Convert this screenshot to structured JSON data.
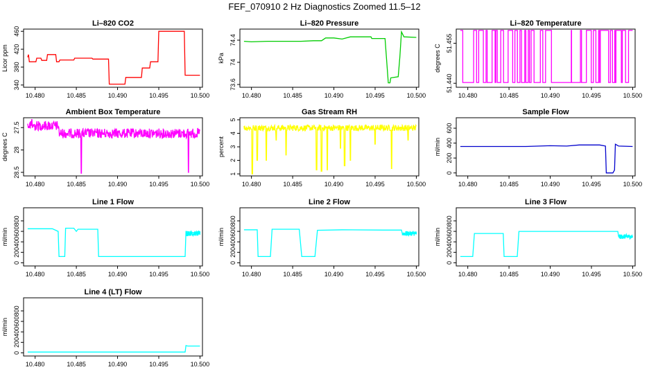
{
  "title": "FEF_070910  2 Hz Diagnostics Zoomed 11.5–12",
  "x_ticks": [
    "10.480",
    "10.485",
    "10.490",
    "10.495",
    "10.500"
  ],
  "chart_data": [
    {
      "type": "line",
      "title": "Li–820 CO2",
      "ylabel": "Licor ppm",
      "color": "#ff0000",
      "xlim": [
        10.4786,
        10.5003
      ],
      "ylim": [
        335,
        465
      ],
      "y_ticks": [
        340,
        380,
        420,
        460
      ],
      "series": [
        {
          "segments": [
            [
              [
                10.4791,
                402
              ],
              [
                10.4792,
                408
              ],
              [
                10.4793,
                392
              ],
              [
                10.4801,
                392
              ],
              [
                10.4802,
                400
              ],
              [
                10.4807,
                400
              ],
              [
                10.4808,
                395
              ],
              [
                10.4814,
                395
              ],
              [
                10.4815,
                408
              ],
              [
                10.4825,
                408
              ],
              [
                10.4826,
                392
              ],
              [
                10.4829,
                392
              ],
              [
                10.483,
                396
              ],
              [
                10.4847,
                396
              ],
              [
                10.4848,
                400
              ],
              [
                10.4869,
                400
              ],
              [
                10.487,
                398
              ],
              [
                10.4889,
                398
              ],
              [
                10.489,
                342
              ],
              [
                10.4909,
                342
              ],
              [
                10.491,
                357
              ],
              [
                10.4929,
                357
              ],
              [
                10.493,
                378
              ],
              [
                10.4939,
                378
              ],
              [
                10.494,
                392
              ],
              [
                10.4949,
                392
              ],
              [
                10.495,
                460
              ],
              [
                10.4981,
                460
              ],
              [
                10.4982,
                362
              ],
              [
                10.5,
                362
              ]
            ]
          ]
        }
      ]
    },
    {
      "type": "line",
      "title": "Li–820 Pressure",
      "ylabel": "kPa",
      "color": "#00cc00",
      "xlim": [
        10.4786,
        10.5003
      ],
      "ylim": [
        73.55,
        74.6
      ],
      "y_ticks": [
        73.6,
        74.0,
        74.4
      ],
      "series": [
        {
          "segments": [
            [
              [
                10.4791,
                74.38
              ],
              [
                10.48,
                74.37
              ],
              [
                10.482,
                74.38
              ],
              [
                10.484,
                74.38
              ],
              [
                10.486,
                74.38
              ],
              [
                10.4875,
                74.39
              ],
              [
                10.4885,
                74.39
              ],
              [
                10.489,
                74.44
              ],
              [
                10.49,
                74.44
              ],
              [
                10.491,
                74.42
              ],
              [
                10.492,
                74.46
              ],
              [
                10.493,
                74.46
              ],
              [
                10.4945,
                74.46
              ],
              [
                10.4946,
                74.43
              ],
              [
                10.4962,
                74.43
              ],
              [
                10.4966,
                73.63
              ],
              [
                10.4968,
                73.63
              ],
              [
                10.4969,
                73.72
              ],
              [
                10.4978,
                73.74
              ],
              [
                10.498,
                74.1
              ],
              [
                10.4982,
                74.55
              ],
              [
                10.4985,
                74.46
              ],
              [
                10.5,
                74.45
              ]
            ]
          ]
        }
      ]
    },
    {
      "type": "line",
      "title": "Li–820 Temperature",
      "ylabel": "degrees C",
      "color": "#ff00ff",
      "xlim": [
        10.4786,
        10.5003
      ],
      "ylim": [
        51.4385,
        51.4603
      ],
      "y_ticks": [
        51.44,
        51.455
      ],
      "y_tick_labels": [
        "51.440",
        "51.455"
      ],
      "series": [
        {
          "segments": []
        }
      ]
    },
    {
      "type": "line",
      "title": "Ambient Box Temperature",
      "ylabel": "degrees C",
      "color": "#ff00ff",
      "xlim": [
        10.4786,
        10.5003
      ],
      "ylim": [
        28.58,
        27.28
      ],
      "y_ticks": [
        27.5,
        28.0,
        28.5
      ],
      "y_tick_labels": [
        "27.5",
        "28",
        "28.5"
      ],
      "series": [
        {
          "segments": []
        }
      ]
    },
    {
      "type": "line",
      "title": "Gas Stream RH",
      "ylabel": "percent",
      "color": "#ffff00",
      "xlim": [
        10.4786,
        10.5003
      ],
      "ylim": [
        0.85,
        5.15
      ],
      "y_ticks": [
        1,
        2,
        3,
        4,
        5
      ],
      "series": [
        {
          "segments": []
        }
      ]
    },
    {
      "type": "line",
      "title": "Sample Flow",
      "ylabel": "ml/min",
      "color": "#0000cc",
      "xlim": [
        10.4786,
        10.5003
      ],
      "ylim": [
        -40,
        740
      ],
      "y_ticks": [
        0,
        200,
        400,
        600
      ],
      "series": [
        {
          "segments": [
            [
              [
                10.4791,
                355
              ],
              [
                10.483,
                355
              ],
              [
                10.487,
                355
              ],
              [
                10.49,
                365
              ],
              [
                10.492,
                360
              ],
              [
                10.4935,
                375
              ],
              [
                10.496,
                375
              ],
              [
                10.4967,
                360
              ],
              [
                10.4968,
                0
              ],
              [
                10.4976,
                0
              ],
              [
                10.4978,
                40
              ],
              [
                10.4979,
                385
              ],
              [
                10.4983,
                360
              ],
              [
                10.5,
                355
              ]
            ]
          ]
        }
      ]
    },
    {
      "type": "line",
      "title": "Line 1 Flow",
      "ylabel": "ml/min",
      "color": "#00ffff",
      "xlim": [
        10.4786,
        10.5003
      ],
      "ylim": [
        -60,
        1050
      ],
      "y_ticks": [
        0,
        200,
        400,
        600,
        800
      ],
      "series": [
        {
          "segments": [
            [
              [
                10.4791,
                650
              ],
              [
                10.4821,
                650
              ],
              [
                10.4828,
                600
              ],
              [
                10.4829,
                120
              ],
              [
                10.4836,
                120
              ],
              [
                10.4837,
                660
              ],
              [
                10.4847,
                660
              ],
              [
                10.485,
                600
              ],
              [
                10.4852,
                640
              ],
              [
                10.4876,
                640
              ],
              [
                10.4877,
                120
              ],
              [
                10.4982,
                120
              ],
              [
                10.4983,
                600
              ],
              [
                10.5,
                560
              ]
            ]
          ]
        }
      ]
    },
    {
      "type": "line",
      "title": "Line 2 Flow",
      "ylabel": "ml/min",
      "color": "#00ffff",
      "xlim": [
        10.4786,
        10.5003
      ],
      "ylim": [
        -60,
        1050
      ],
      "y_ticks": [
        0,
        200,
        400,
        600,
        800
      ],
      "series": [
        {
          "segments": [
            [
              [
                10.4791,
                630
              ],
              [
                10.4807,
                630
              ],
              [
                10.4808,
                120
              ],
              [
                10.4823,
                120
              ],
              [
                10.4825,
                640
              ],
              [
                10.4858,
                640
              ],
              [
                10.4861,
                120
              ],
              [
                10.4877,
                120
              ],
              [
                10.488,
                620
              ],
              [
                10.491,
                630
              ],
              [
                10.496,
                625
              ],
              [
                10.4982,
                625
              ],
              [
                10.4983,
                560
              ],
              [
                10.5,
                560
              ]
            ]
          ]
        }
      ]
    },
    {
      "type": "line",
      "title": "Line 3 Flow",
      "ylabel": "ml/min",
      "color": "#00ffff",
      "xlim": [
        10.4786,
        10.5003
      ],
      "ylim": [
        -60,
        1050
      ],
      "y_ticks": [
        0,
        200,
        400,
        600,
        800
      ],
      "series": [
        {
          "segments": [
            [
              [
                10.4791,
                120
              ],
              [
                10.4806,
                120
              ],
              [
                10.4808,
                560
              ],
              [
                10.483,
                560
              ],
              [
                10.4843,
                560
              ],
              [
                10.4844,
                120
              ],
              [
                10.486,
                120
              ],
              [
                10.4862,
                600
              ],
              [
                10.49,
                600
              ],
              [
                10.496,
                600
              ],
              [
                10.4982,
                600
              ],
              [
                10.4983,
                500
              ],
              [
                10.5,
                500
              ]
            ]
          ]
        }
      ]
    },
    {
      "type": "line",
      "title": "Line 4 (LT) Flow",
      "ylabel": "ml/min",
      "color": "#00ffff",
      "xlim": [
        10.4786,
        10.5003
      ],
      "ylim": [
        -60,
        1050
      ],
      "y_ticks": [
        0,
        200,
        400,
        600,
        800
      ],
      "series": [
        {
          "segments": [
            [
              [
                10.4791,
                15
              ],
              [
                10.4982,
                15
              ],
              [
                10.4983,
                140
              ],
              [
                10.4985,
                130
              ],
              [
                10.5,
                130
              ]
            ]
          ]
        }
      ]
    }
  ]
}
